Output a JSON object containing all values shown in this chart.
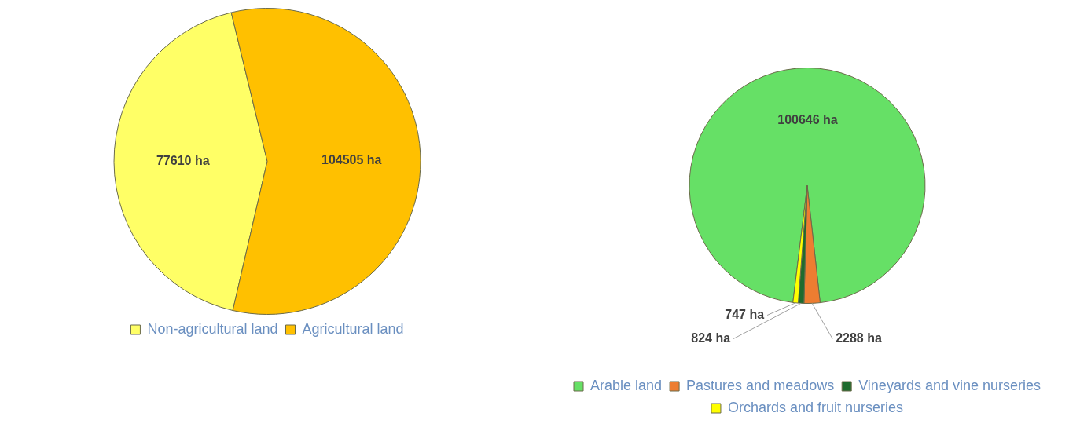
{
  "chart_data": [
    {
      "type": "pie",
      "categories": [
        "Non-agricultural land",
        "Agricultural land"
      ],
      "values": [
        77610,
        104505
      ],
      "colors": [
        "#ffff66",
        "#ffc000"
      ],
      "value_labels": [
        "77610 ha",
        "104505 ha"
      ],
      "legend": "bottom"
    },
    {
      "type": "pie",
      "categories": [
        "Arable land",
        "Pastures and meadows",
        "Vineyards and vine nurseries",
        "Orchards and fruit nurseries"
      ],
      "values": [
        100646,
        2288,
        824,
        747
      ],
      "colors": [
        "#66e066",
        "#ed7d31",
        "#1e6b2e",
        "#ffff00"
      ],
      "value_labels": [
        "100646 ha",
        "2288 ha",
        "824 ha",
        "747 ha"
      ],
      "legend": "bottom"
    }
  ]
}
